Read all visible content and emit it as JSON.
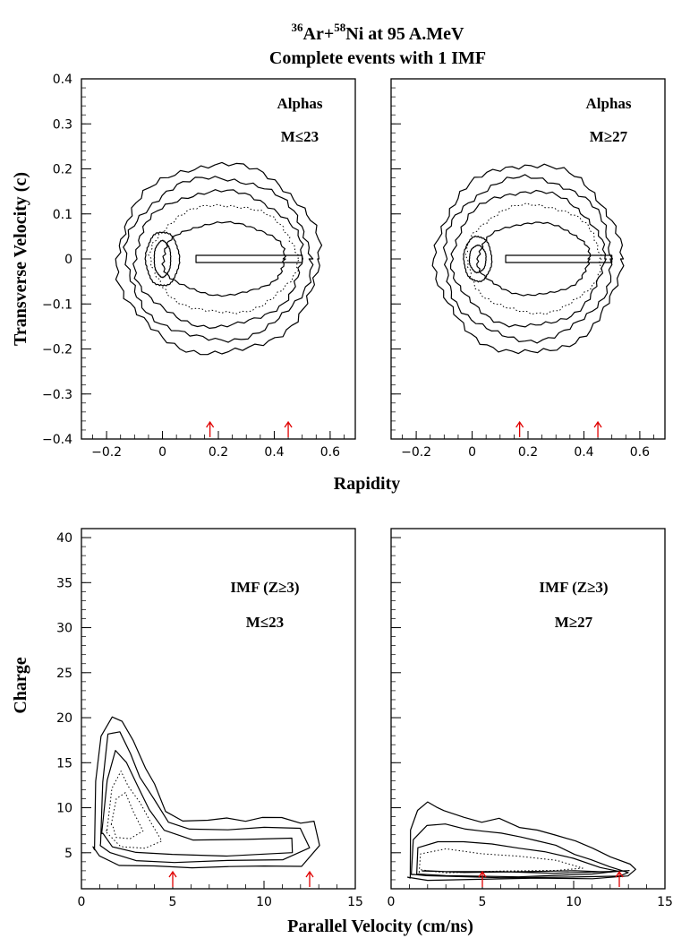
{
  "figure": {
    "title_nucleus_a_mass": "36",
    "title_nucleus_a": "Ar+",
    "title_nucleus_b_mass": "58",
    "title_nucleus_b_rest": "Ni at 95 A.MeV",
    "subtitle": "Complete events with 1 IMF"
  },
  "chart_data": [
    {
      "type": "contour",
      "panel": "top-left",
      "label_line1": "Alphas",
      "label_line2": "M≤23",
      "xlabel": "Rapidity",
      "ylabel": "Transverse Velocity (c)",
      "xlim": [
        -0.29,
        0.69
      ],
      "ylim": [
        -0.4,
        0.4
      ],
      "xticks": [
        "-0.2",
        "0",
        "0.2",
        "0.4",
        "0.6"
      ],
      "yticks": [
        "0.4",
        "0.3",
        "0.2",
        "0.1",
        "0",
        "-0.1",
        "-0.2",
        "-0.3",
        "-0.4"
      ],
      "reference_arrows_x": [
        0.17,
        0.45
      ],
      "contours": [
        {
          "style": "solid",
          "cx": 0.2,
          "cy": 0,
          "rx": 0.36,
          "ry": 0.21
        },
        {
          "style": "solid",
          "cx": 0.2,
          "cy": 0,
          "rx": 0.33,
          "ry": 0.18
        },
        {
          "style": "solid",
          "cx": 0.2,
          "cy": 0,
          "rx": 0.3,
          "ry": 0.15
        },
        {
          "style": "dotted",
          "cx": 0.22,
          "cy": 0,
          "rx": 0.26,
          "ry": 0.12
        },
        {
          "style": "solid",
          "cx": 0.22,
          "cy": 0,
          "rx": 0.22,
          "ry": 0.08
        },
        {
          "style": "solid",
          "cx": 0.0,
          "cy": 0,
          "rx": 0.06,
          "ry": 0.06
        },
        {
          "style": "solid",
          "cx": 0.0,
          "cy": 0,
          "rx": 0.03,
          "ry": 0.04
        }
      ]
    },
    {
      "type": "contour",
      "panel": "top-right",
      "label_line1": "Alphas",
      "label_line2": "M≥27",
      "xlabel": "Rapidity",
      "xlim": [
        -0.29,
        0.69
      ],
      "ylim": [
        -0.4,
        0.4
      ],
      "xticks": [
        "-0.2",
        "0",
        "0.2",
        "0.4",
        "0.6"
      ],
      "reference_arrows_x": [
        0.17,
        0.45
      ],
      "contours": [
        {
          "style": "solid",
          "cx": 0.2,
          "cy": 0,
          "rx": 0.33,
          "ry": 0.21
        },
        {
          "style": "solid",
          "cx": 0.2,
          "cy": 0,
          "rx": 0.3,
          "ry": 0.18
        },
        {
          "style": "solid",
          "cx": 0.2,
          "cy": 0,
          "rx": 0.27,
          "ry": 0.15
        },
        {
          "style": "dotted",
          "cx": 0.22,
          "cy": 0,
          "rx": 0.24,
          "ry": 0.12
        },
        {
          "style": "solid",
          "cx": 0.22,
          "cy": 0,
          "rx": 0.2,
          "ry": 0.08
        },
        {
          "style": "solid",
          "cx": 0.02,
          "cy": 0,
          "rx": 0.05,
          "ry": 0.05
        },
        {
          "style": "solid",
          "cx": 0.02,
          "cy": 0,
          "rx": 0.03,
          "ry": 0.03
        }
      ]
    },
    {
      "type": "contour",
      "panel": "bottom-left",
      "label_line1": "IMF (Z≥3)",
      "label_line2": "M≤23",
      "xlabel": "Parallel Velocity (cm/ns)",
      "ylabel": "Charge",
      "xlim": [
        0,
        15
      ],
      "ylim": [
        1,
        41
      ],
      "xticks": [
        "0",
        "5",
        "10",
        "15"
      ],
      "yticks": [
        "40",
        "35",
        "30",
        "25",
        "20",
        "15",
        "10",
        "5"
      ],
      "reference_arrows_x": [
        5.0,
        12.5
      ],
      "contours": [
        {
          "style": "solid",
          "points": [
            [
              0.7,
              5.5
            ],
            [
              0.8,
              13
            ],
            [
              1.1,
              18
            ],
            [
              1.6,
              20.3
            ],
            [
              2.2,
              19.6
            ],
            [
              2.8,
              17.5
            ],
            [
              3.4,
              14.5
            ],
            [
              4.0,
              12.5
            ],
            [
              4.6,
              9.5
            ],
            [
              5.5,
              8.5
            ],
            [
              7,
              8.4
            ],
            [
              8,
              8.8
            ],
            [
              9,
              8.5
            ],
            [
              10,
              8.8
            ],
            [
              11,
              9
            ],
            [
              12,
              8.4
            ],
            [
              12.8,
              8.5
            ],
            [
              13,
              6
            ],
            [
              12,
              3.6
            ],
            [
              10,
              3.5
            ],
            [
              8,
              3.6
            ],
            [
              6,
              3.3
            ],
            [
              4,
              3.4
            ],
            [
              2,
              3.6
            ],
            [
              1,
              4.5
            ],
            [
              0.7,
              5.5
            ]
          ]
        },
        {
          "style": "solid",
          "points": [
            [
              1,
              6
            ],
            [
              1.1,
              13
            ],
            [
              1.5,
              18.2
            ],
            [
              2.1,
              18.5
            ],
            [
              2.7,
              16.2
            ],
            [
              3.3,
              13.4
            ],
            [
              4,
              11
            ],
            [
              4.8,
              8.5
            ],
            [
              6,
              7.5
            ],
            [
              8,
              7.5
            ],
            [
              10,
              7.8
            ],
            [
              12,
              7.5
            ],
            [
              12.4,
              5.5
            ],
            [
              11,
              4.2
            ],
            [
              8,
              4
            ],
            [
              5,
              4
            ],
            [
              3,
              4.2
            ],
            [
              1.6,
              5
            ],
            [
              1,
              6
            ]
          ]
        },
        {
          "style": "solid",
          "points": [
            [
              1.2,
              7
            ],
            [
              1.4,
              13
            ],
            [
              1.9,
              16.5
            ],
            [
              2.5,
              15
            ],
            [
              3,
              12.5
            ],
            [
              3.7,
              10
            ],
            [
              4.5,
              7.5
            ],
            [
              6,
              6.5
            ],
            [
              9,
              6.6
            ],
            [
              11.5,
              6.5
            ],
            [
              11.5,
              5
            ],
            [
              8,
              4.6
            ],
            [
              5,
              4.6
            ],
            [
              3,
              5
            ],
            [
              1.8,
              5.6
            ],
            [
              1.2,
              7
            ]
          ]
        },
        {
          "style": "dotted",
          "points": [
            [
              1.4,
              7.5
            ],
            [
              1.6,
              12
            ],
            [
              2.1,
              14
            ],
            [
              2.6,
              12.5
            ],
            [
              3.2,
              10.5
            ],
            [
              3.8,
              8.5
            ],
            [
              4.5,
              6.5
            ],
            [
              3.5,
              5.5
            ],
            [
              2.2,
              5.8
            ],
            [
              1.4,
              7.5
            ]
          ]
        },
        {
          "style": "dotted",
          "points": [
            [
              1.7,
              8
            ],
            [
              2.0,
              11
            ],
            [
              2.4,
              11.5
            ],
            [
              2.9,
              9.5
            ],
            [
              3.4,
              7.5
            ],
            [
              2.6,
              6.5
            ],
            [
              1.9,
              6.8
            ],
            [
              1.7,
              8
            ]
          ]
        }
      ]
    },
    {
      "type": "contour",
      "panel": "bottom-right",
      "label_line1": "IMF (Z≥3)",
      "label_line2": "M≥27",
      "xlabel": "Parallel Velocity (cm/ns)",
      "xlim": [
        0,
        15
      ],
      "ylim": [
        1,
        41
      ],
      "xticks": [
        "0",
        "5",
        "10",
        "15"
      ],
      "reference_arrows_x": [
        5.0,
        12.5
      ],
      "contours": [
        {
          "style": "solid",
          "points": [
            [
              1,
              2.2
            ],
            [
              1,
              7.5
            ],
            [
              1.5,
              9.5
            ],
            [
              2,
              10.6
            ],
            [
              2.5,
              10
            ],
            [
              3,
              9.5
            ],
            [
              4,
              9
            ],
            [
              5,
              8.4
            ],
            [
              6,
              8.8
            ],
            [
              7,
              8
            ],
            [
              8,
              7.6
            ],
            [
              9,
              7
            ],
            [
              10,
              6.5
            ],
            [
              11,
              5.5
            ],
            [
              12,
              4.5
            ],
            [
              13,
              3.8
            ],
            [
              13.4,
              3
            ],
            [
              13,
              2.3
            ],
            [
              11,
              2.1
            ],
            [
              8,
              2
            ],
            [
              5,
              2
            ],
            [
              2,
              2
            ],
            [
              1,
              2.2
            ]
          ]
        },
        {
          "style": "solid",
          "points": [
            [
              1.2,
              2.5
            ],
            [
              1.2,
              6.5
            ],
            [
              2,
              8
            ],
            [
              3,
              8
            ],
            [
              4,
              7.6
            ],
            [
              5,
              7.3
            ],
            [
              6,
              7
            ],
            [
              7,
              6.8
            ],
            [
              8,
              6.3
            ],
            [
              9,
              5.8
            ],
            [
              10,
              5
            ],
            [
              11,
              4.3
            ],
            [
              12,
              3.5
            ],
            [
              13,
              3
            ],
            [
              12.6,
              2.4
            ],
            [
              10,
              2.3
            ],
            [
              6,
              2.3
            ],
            [
              2,
              2.3
            ],
            [
              1.2,
              2.5
            ]
          ]
        },
        {
          "style": "solid",
          "points": [
            [
              1.4,
              2.7
            ],
            [
              1.4,
              5.5
            ],
            [
              2.5,
              6.3
            ],
            [
              4,
              6.2
            ],
            [
              5.5,
              5.8
            ],
            [
              7,
              5.5
            ],
            [
              8.5,
              5
            ],
            [
              10,
              4.2
            ],
            [
              11.5,
              3.4
            ],
            [
              12.5,
              2.9
            ],
            [
              11,
              2.6
            ],
            [
              7,
              2.5
            ],
            [
              3,
              2.5
            ],
            [
              1.4,
              2.7
            ]
          ]
        },
        {
          "style": "dotted",
          "points": [
            [
              1.6,
              3
            ],
            [
              1.7,
              5
            ],
            [
              3,
              5.4
            ],
            [
              5,
              5
            ],
            [
              7,
              4.6
            ],
            [
              9,
              4
            ],
            [
              10.5,
              3.3
            ],
            [
              9,
              2.9
            ],
            [
              6,
              2.8
            ],
            [
              3,
              2.8
            ],
            [
              1.6,
              3
            ]
          ]
        },
        {
          "style": "solid",
          "points": [
            [
              1.8,
              3
            ],
            [
              4,
              3
            ],
            [
              7,
              3
            ],
            [
              10,
              3
            ],
            [
              12,
              3
            ],
            [
              13,
              3
            ],
            [
              12,
              2.8
            ],
            [
              9,
              2.75
            ],
            [
              6,
              2.75
            ],
            [
              3,
              2.75
            ],
            [
              1.8,
              3
            ]
          ]
        }
      ]
    }
  ]
}
